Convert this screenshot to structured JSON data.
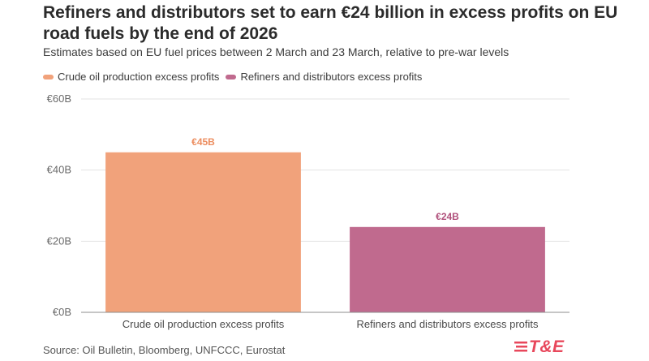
{
  "title": "Refiners and distributors set to earn €24 billion in excess profits on EU road fuels by the end of 2026",
  "subtitle": "Estimates based on EU fuel prices between 2 March and 23 March, relative to pre-war levels",
  "source": "Source: Oil Bulletin, Bloomberg, UNFCCC, Eurostat",
  "logo": {
    "text": "T&E",
    "color": "#e8485c"
  },
  "chart_data": {
    "type": "bar",
    "categories": [
      "Crude oil production excess profits",
      "Refiners and distributors excess profits"
    ],
    "values": [
      45,
      24
    ],
    "value_labels": [
      "€45B",
      "€24B"
    ],
    "colors": [
      "#f1a27b",
      "#c06a8e"
    ],
    "label_colors": [
      "#ec8d5f",
      "#b0507b"
    ],
    "legend": [
      {
        "label": "Crude oil production excess profits",
        "color": "#f1a27b"
      },
      {
        "label": "Refiners and distributors excess profits",
        "color": "#c06a8e"
      }
    ],
    "ylim": [
      0,
      60
    ],
    "yticks": [
      0,
      20,
      40,
      60
    ],
    "ytick_labels": [
      "€0B",
      "€20B",
      "€40B",
      "€60B"
    ],
    "grid": true,
    "xlabel": "",
    "ylabel": ""
  }
}
